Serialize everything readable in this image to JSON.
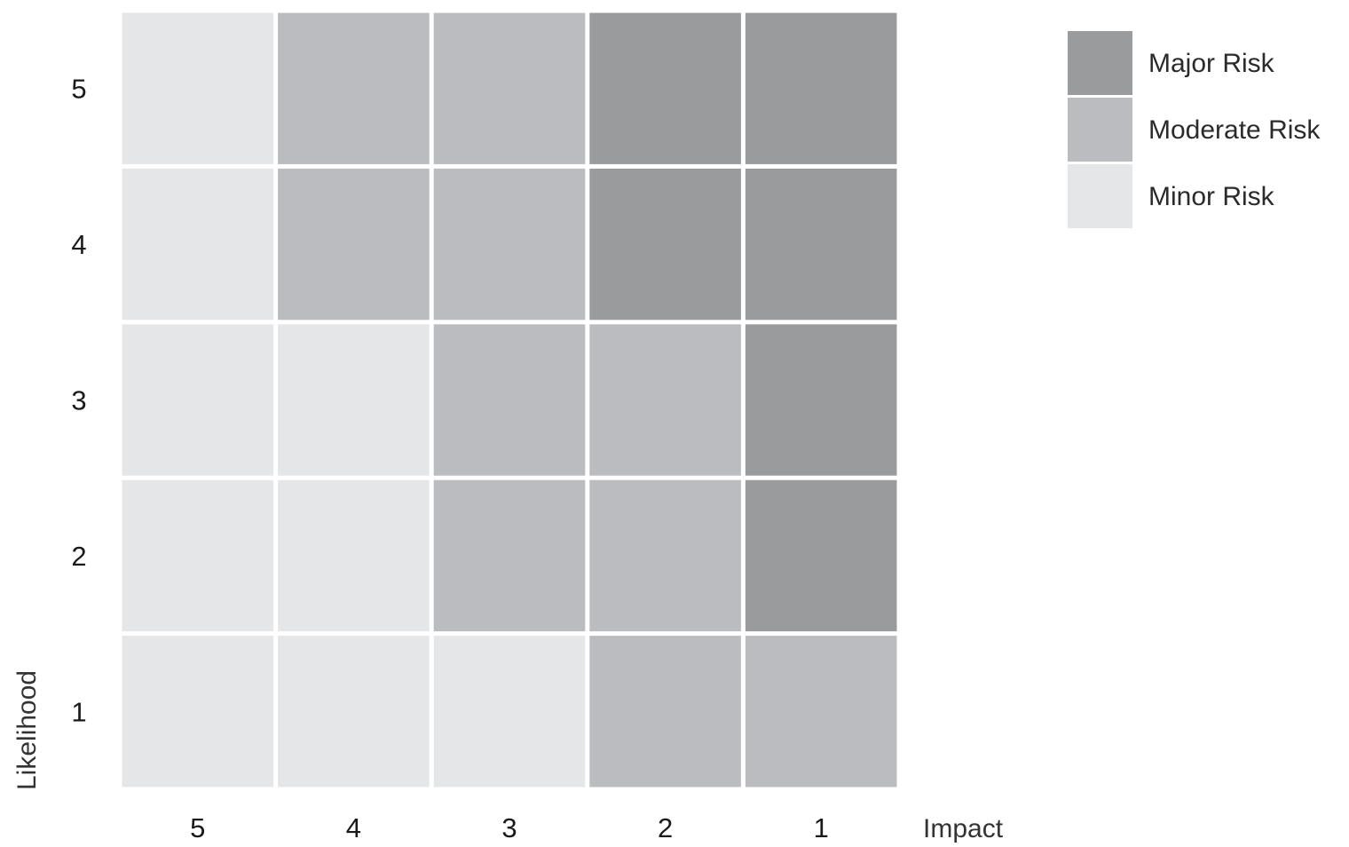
{
  "chart_data": {
    "type": "heatmap",
    "xlabel": "Impact",
    "ylabel": "Likelihood",
    "x_categories": [
      "5",
      "4",
      "3",
      "2",
      "1"
    ],
    "y_categories": [
      "5",
      "4",
      "3",
      "2",
      "1"
    ],
    "levels": [
      "Minor Risk",
      "Moderate Risk",
      "Major Risk"
    ],
    "cells": [
      [
        "Minor Risk",
        "Moderate Risk",
        "Moderate Risk",
        "Major Risk",
        "Major Risk"
      ],
      [
        "Minor Risk",
        "Moderate Risk",
        "Moderate Risk",
        "Major Risk",
        "Major Risk"
      ],
      [
        "Minor Risk",
        "Minor Risk",
        "Moderate Risk",
        "Moderate Risk",
        "Major Risk"
      ],
      [
        "Minor Risk",
        "Minor Risk",
        "Moderate Risk",
        "Moderate Risk",
        "Major Risk"
      ],
      [
        "Minor Risk",
        "Minor Risk",
        "Minor Risk",
        "Moderate Risk",
        "Moderate Risk"
      ]
    ],
    "legend": {
      "placement": "right",
      "entries": [
        {
          "label": "Major Risk",
          "color": "#9a9b9d"
        },
        {
          "label": "Moderate Risk",
          "color": "#bbbcbf"
        },
        {
          "label": "Minor Risk",
          "color": "#e5e6e8"
        }
      ]
    },
    "colors": {
      "Major Risk": "#9a9b9d",
      "Moderate Risk": "#bbbcbf",
      "Minor Risk": "#e5e6e8"
    },
    "grid": false
  }
}
